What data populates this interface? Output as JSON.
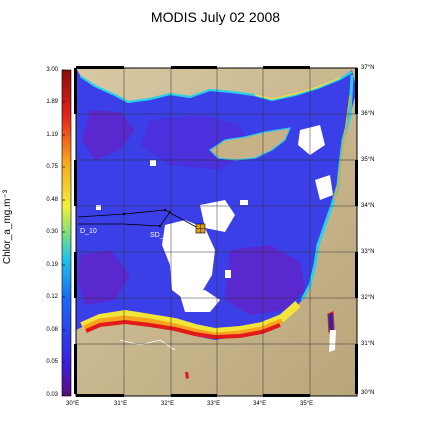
{
  "title": "MODIS July 02 2008",
  "colorbar": {
    "label": "Chlor_a_mg.m⁻³",
    "ticks": [
      "3.00",
      "1.89",
      "1.19",
      "0.75",
      "0.48",
      "0.30",
      "0.19",
      "0.12",
      "0.08",
      "0.05",
      "0.03"
    ]
  },
  "lat_labels": [
    "37°N",
    "36°N",
    "35°N",
    "34°N",
    "33°N",
    "32°N",
    "31°N",
    "30°N"
  ],
  "lon_labels": [
    "30°E",
    "31°E",
    "32°E",
    "33°E",
    "34°E",
    "35°E"
  ],
  "stations": [
    {
      "label": "D_10"
    },
    {
      "label": "SD_1"
    }
  ],
  "colors": {
    "land": "#c9b890",
    "sea_low": "#5b2bd6",
    "sea_mid": "#2b4cf0",
    "coast_high": "#e21a1a",
    "cloud": "#ffffff"
  }
}
